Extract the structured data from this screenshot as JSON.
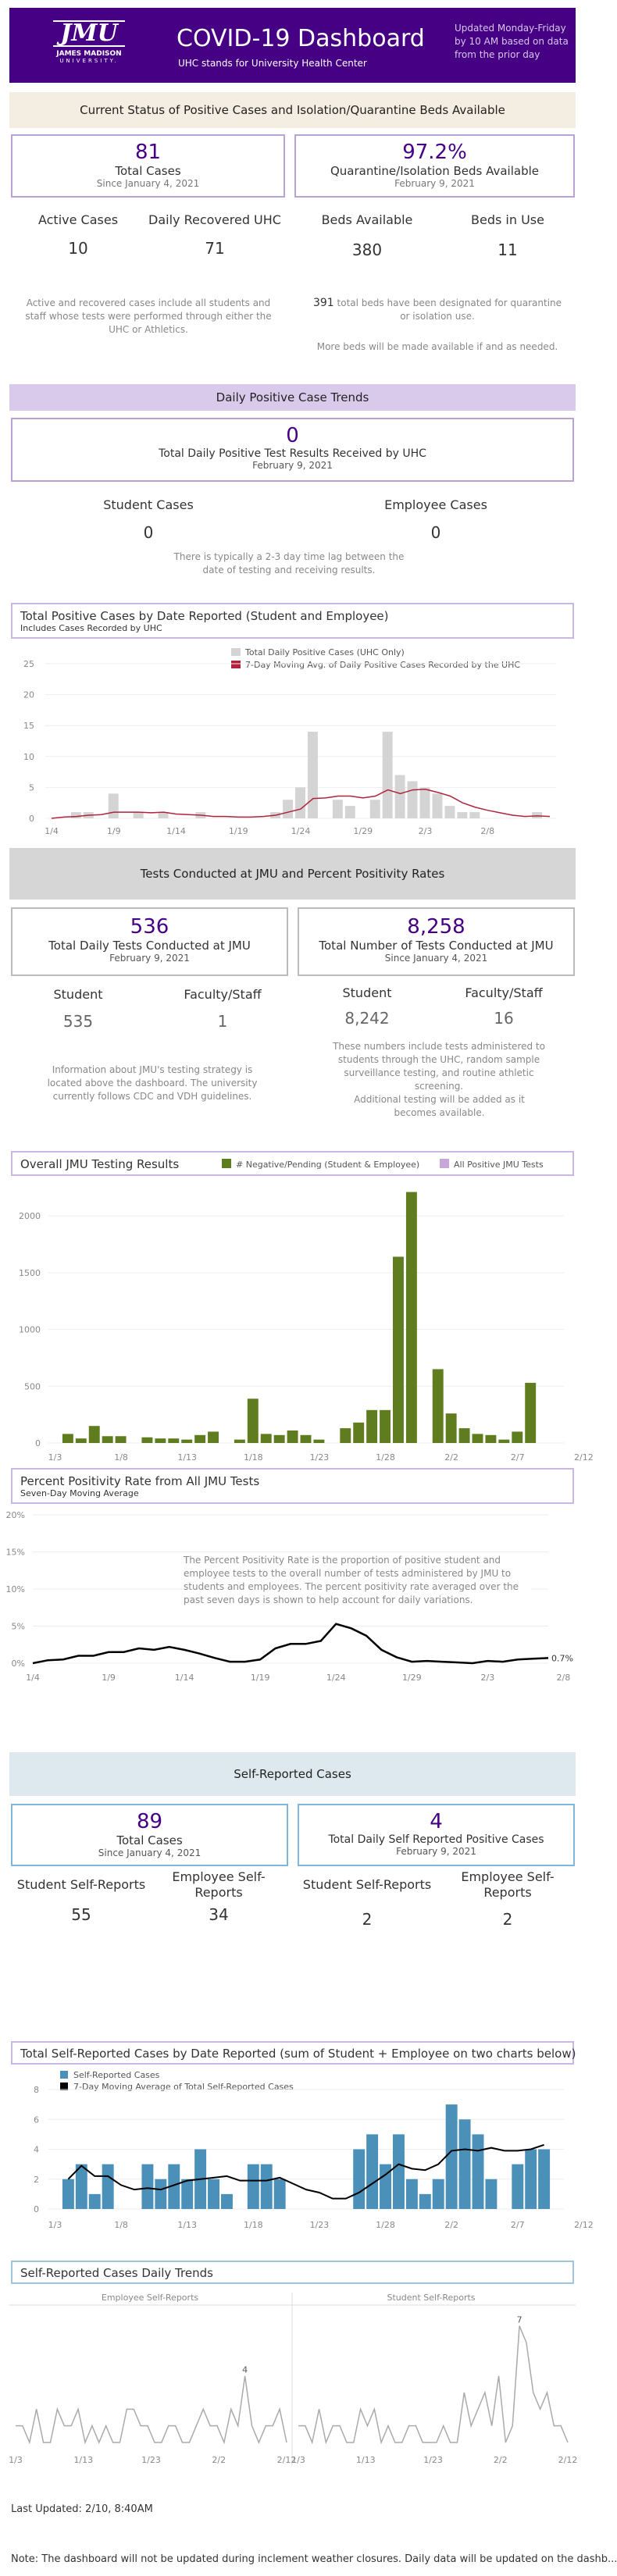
{
  "header": {
    "logo_text": "JMU",
    "logo_sub": "JAMES MADISON",
    "logo_sub2": "UNIVERSITY.",
    "title": "COVID-19 Dashboard",
    "subtitle": "UHC stands for University Health Center",
    "update_note": "Updated Monday-Friday by 10 AM based on data from the prior day",
    "bg_color": "#450084"
  },
  "status_section": {
    "banner": "Current Status of Positive Cases and Isolation/Quarantine Beds Available",
    "total_cases_value": "81",
    "total_cases_label": "Total Cases",
    "total_cases_since": "Since January 4, 2021",
    "quarantine_value": "97.2%",
    "quarantine_label": "Quarantine/Isolation Beds Available",
    "quarantine_date": "February 9, 2021",
    "active_label": "Active Cases",
    "active_value": "10",
    "recovered_label": "Daily Recovered UHC",
    "recovered_value": "71",
    "beds_available_label": "Beds Available",
    "beds_available_value": "380",
    "beds_in_use_label": "Beds in Use",
    "beds_in_use_value": "11",
    "active_note": "Active and recovered cases include all students and staff whose tests were performed through either the UHC or Athletics.",
    "beds_total": "391",
    "beds_note": "total beds have been designated for quarantine or isolation use.",
    "beds_note2": "More beds will be made available if and as needed."
  },
  "daily_section": {
    "banner": "Daily Positive Case Trends",
    "value": "0",
    "label": "Total Daily Positive Test Results Received by UHC",
    "date": "February 9, 2021",
    "student_label": "Student Cases",
    "student_value": "0",
    "employee_label": "Employee Cases",
    "employee_value": "0",
    "lag_note": "There is typically a 2-3 day time lag between the date of testing and receiving results."
  },
  "positive_chart": {
    "title": "Total Positive Cases by Date Reported (Student and Employee)",
    "subtitle": "Includes Cases Recorded by UHC",
    "legend_bar": "Total Daily Positive Cases (UHC Only)",
    "legend_line": "7-Day Moving Avg. of Daily Positive Cases Recorded by the UHC",
    "bar_color": "#d4d4d4",
    "line_color": "#b0233a"
  },
  "tests_section": {
    "banner": "Tests Conducted at JMU and Percent Positivity Rates",
    "daily_value": "536",
    "daily_label": "Total Daily Tests Conducted at JMU",
    "daily_date": "February 9, 2021",
    "total_value": "8,258",
    "total_label": "Total Number of Tests Conducted at JMU",
    "total_since": "Since January 4, 2021",
    "student_label": "Student",
    "student_daily": "535",
    "faculty_label": "Faculty/Staff",
    "faculty_daily": "1",
    "student_total": "8,242",
    "faculty_total": "16",
    "strategy_note": "Information about JMU's testing strategy is located above the dashboard. The university currently follows CDC and VDH guidelines.",
    "admin_note": "These numbers include tests administered to students through the UHC, random sample surveillance testing, and routine athletic screening.",
    "additional_note": "Additional testing will be added as it becomes available."
  },
  "testing_chart": {
    "title": "Overall JMU Testing Results",
    "legend_neg": "# Negative/Pending (Student & Employee)",
    "legend_pos": "All Positive JMU Tests",
    "neg_color": "#5f7d1f",
    "pos_color": "#c7a6d9"
  },
  "positivity_chart": {
    "title": "Percent Positivity Rate from All JMU Tests",
    "subtitle": "Seven-Day Moving Average",
    "note": "The Percent Positivity Rate is the proportion of positive student and employee tests to the overall number of tests administered by JMU to students and employees.  The percent positivity rate averaged over the past seven days is shown to help account for daily variations.",
    "end_label": "0.7%"
  },
  "self_section": {
    "banner": "Self-Reported Cases",
    "total_value": "89",
    "total_label": "Total Cases",
    "total_since": "Since January 4, 2021",
    "daily_value": "4",
    "daily_label": "Total Daily Self Reported Positive Cases",
    "daily_date": "February 9, 2021",
    "student_label": "Student Self-Reports",
    "student_total": "55",
    "employee_label": "Employee Self-Reports",
    "employee_total": "34",
    "student_daily_label": "Student Self-Reports",
    "student_daily": "2",
    "employee_daily_label": "Employee Self-Reports",
    "employee_daily": "2"
  },
  "self_chart": {
    "title": "Total Self-Reported Cases by Date Reported (sum of Student + Employee on two charts below)",
    "legend_bar": "Self-Reported Cases",
    "legend_line": "7-Day Moving Average of Total Self-Reported Cases",
    "bar_color": "#4a90b8"
  },
  "trends_chart": {
    "title": "Self-Reported Cases Daily Trends",
    "left_label": "Employee Self-Reports",
    "right_label": "Student Self-Reports",
    "left_peak": "4",
    "right_peak": "7"
  },
  "footer": {
    "last_updated": "Last Updated: 2/10, 8:40AM",
    "note": "Note: The dashboard will not be updated during inclement weather closures. Daily data will be updated on the dashb..."
  },
  "chart_data": [
    {
      "type": "bar",
      "title": "Total Positive Cases by Date Reported (Student and Employee)",
      "x_ticks": [
        "1/4",
        "1/9",
        "1/14",
        "1/19",
        "1/24",
        "1/29",
        "2/3",
        "2/8"
      ],
      "ylim": [
        0,
        25
      ],
      "y_ticks": [
        0,
        5,
        10,
        15,
        20,
        25
      ],
      "series": [
        {
          "name": "Total Daily Positive Cases (UHC Only)",
          "values": [
            0,
            0,
            1,
            1,
            0,
            4,
            0,
            1,
            0,
            1,
            0,
            0,
            1,
            0,
            0,
            0,
            0,
            0,
            1,
            3,
            5,
            14,
            0,
            3,
            2,
            0,
            3,
            14,
            7,
            6,
            5,
            4,
            2,
            1,
            1,
            0,
            0,
            0,
            0,
            1,
            0
          ]
        },
        {
          "name": "7-Day Moving Avg. of Daily Positive Cases Recorded by the UHC",
          "values": [
            0,
            0.2,
            0.3,
            0.5,
            0.6,
            1.0,
            1.0,
            1.0,
            0.9,
            1.0,
            0.7,
            0.6,
            0.5,
            0.3,
            0.3,
            0.2,
            0.2,
            0.3,
            0.5,
            1.0,
            1.5,
            3.2,
            3.3,
            3.6,
            3.6,
            3.3,
            3.6,
            4.6,
            4.0,
            4.6,
            4.7,
            4.2,
            3.6,
            2.5,
            1.8,
            1.3,
            0.9,
            0.5,
            0.3,
            0.4,
            0.3
          ]
        }
      ]
    },
    {
      "type": "bar",
      "title": "Overall JMU Testing Results",
      "x_ticks": [
        "1/3",
        "1/8",
        "1/13",
        "1/18",
        "1/23",
        "1/28",
        "2/2",
        "2/7",
        "2/12"
      ],
      "ylim": [
        0,
        2200
      ],
      "y_ticks": [
        0,
        500,
        1000,
        1500,
        2000
      ],
      "series": [
        {
          "name": "# Negative/Pending (Student & Employee)",
          "values": [
            0,
            80,
            40,
            150,
            60,
            60,
            0,
            50,
            40,
            40,
            30,
            70,
            100,
            0,
            30,
            390,
            80,
            70,
            110,
            70,
            30,
            0,
            130,
            180,
            290,
            290,
            1640,
            2210,
            0,
            650,
            260,
            130,
            80,
            70,
            30,
            100,
            530,
            0,
            0
          ]
        },
        {
          "name": "All Positive JMU Tests",
          "values": [
            0,
            0,
            0,
            0,
            0,
            0,
            0,
            0,
            0,
            0,
            0,
            0,
            0,
            0,
            0,
            0,
            0,
            0,
            0,
            0,
            0,
            0,
            0,
            0,
            0,
            0,
            0,
            0,
            0,
            0,
            0,
            0,
            0,
            0,
            0,
            0,
            0,
            0,
            0
          ]
        }
      ]
    },
    {
      "type": "line",
      "title": "Percent Positivity Rate from All JMU Tests",
      "x_ticks": [
        "1/4",
        "1/9",
        "1/14",
        "1/19",
        "1/24",
        "1/29",
        "2/3",
        "2/8"
      ],
      "ylim": [
        0,
        20
      ],
      "y_ticks": [
        "0%",
        "5%",
        "10%",
        "15%",
        "20%"
      ],
      "series": [
        {
          "name": "Seven-Day Moving Average",
          "values": [
            0,
            0.4,
            0.5,
            1.0,
            1.0,
            1.5,
            1.5,
            2.0,
            1.8,
            2.2,
            1.8,
            1.3,
            0.7,
            0.2,
            0.2,
            0.5,
            2.0,
            2.6,
            2.6,
            3.0,
            5.3,
            4.7,
            3.7,
            1.8,
            0.8,
            0.2,
            0.3,
            0.2,
            0.1,
            0,
            0.3,
            0.2,
            0.5,
            0.6,
            0.7
          ]
        }
      ]
    },
    {
      "type": "bar",
      "title": "Total Self-Reported Cases by Date Reported (sum of Student + Employee on two charts below)",
      "x_ticks": [
        "1/3",
        "1/8",
        "1/13",
        "1/18",
        "1/23",
        "1/28",
        "2/2",
        "2/7",
        "2/12"
      ],
      "ylim": [
        0,
        8
      ],
      "y_ticks": [
        0,
        2,
        4,
        6,
        8
      ],
      "series": [
        {
          "name": "Self-Reported Cases",
          "values": [
            0,
            2,
            3,
            1,
            3,
            0,
            0,
            3,
            2,
            3,
            2,
            4,
            2,
            1,
            0,
            3,
            3,
            2,
            0,
            0,
            0,
            0,
            0,
            4,
            5,
            3,
            5,
            2,
            1,
            2,
            7,
            6,
            5,
            2,
            0,
            3,
            4,
            4,
            0
          ]
        },
        {
          "name": "7-Day Moving Average of Total Self-Reported Cases",
          "values": [
            null,
            2,
            2.9,
            2.2,
            2.2,
            1.6,
            1.3,
            1.4,
            1.3,
            1.6,
            1.9,
            2.0,
            2.1,
            2.2,
            1.9,
            1.9,
            1.9,
            2.1,
            1.7,
            1.3,
            1.1,
            0.7,
            0.7,
            1.1,
            1.7,
            2.3,
            3.0,
            2.7,
            2.6,
            3.0,
            3.9,
            4.0,
            3.9,
            4.1,
            3.9,
            3.9,
            4.0,
            4.3,
            null
          ]
        }
      ]
    },
    {
      "type": "line",
      "title": "Self-Reported Cases Daily Trends",
      "x_ticks_left": [
        "1/3",
        "1/13",
        "1/23",
        "2/2",
        "2/12"
      ],
      "x_ticks_right": [
        "1/3",
        "1/13",
        "1/23",
        "2/2",
        "2/12"
      ],
      "series": [
        {
          "name": "Employee Self-Reports",
          "values": [
            1,
            1,
            0,
            2,
            0,
            0,
            2,
            1,
            1,
            2,
            0,
            1,
            0,
            1,
            0,
            0,
            2,
            2,
            1,
            1,
            0,
            0,
            1,
            1,
            0,
            0,
            1,
            2,
            1,
            1,
            0,
            2,
            1,
            4,
            1,
            0,
            1,
            1,
            2,
            0
          ]
        },
        {
          "name": "Student Self-Reports",
          "values": [
            1,
            1,
            0,
            2,
            0,
            1,
            1,
            0,
            0,
            2,
            1,
            2,
            0,
            1,
            0,
            0,
            1,
            1,
            0,
            0,
            0,
            1,
            0,
            0,
            3,
            1,
            2,
            3,
            1,
            4,
            0,
            1,
            7,
            6,
            3,
            2,
            3,
            1,
            1,
            0
          ]
        }
      ]
    }
  ]
}
